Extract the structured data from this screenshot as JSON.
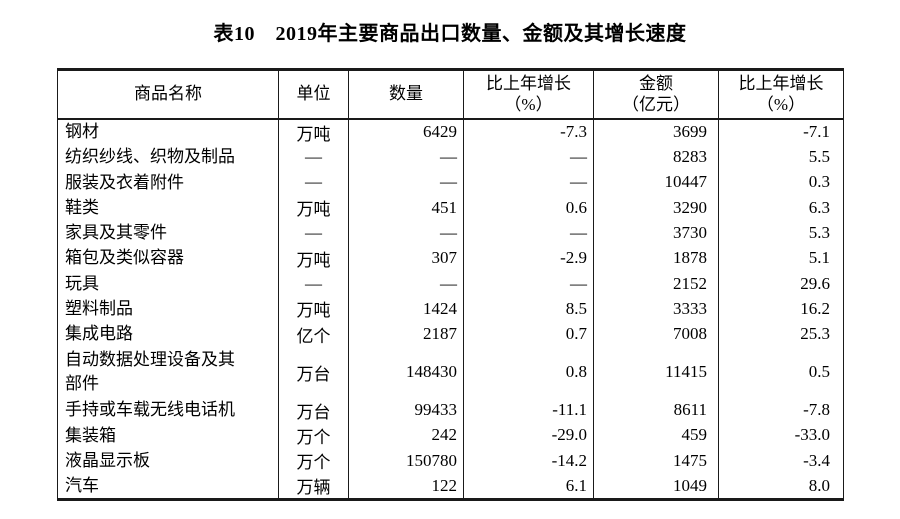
{
  "title": "表10　2019年主要商品出口数量、金额及其增长速度",
  "colors": {
    "text": "#000000",
    "border": "#1a1a1a",
    "background": "#ffffff"
  },
  "table": {
    "columns": [
      {
        "key": "name",
        "lines": [
          "商品名称"
        ]
      },
      {
        "key": "unit",
        "lines": [
          "单位"
        ]
      },
      {
        "key": "quantity",
        "lines": [
          "数量"
        ]
      },
      {
        "key": "quantity_growth",
        "lines": [
          "比上年增长",
          "（%）"
        ]
      },
      {
        "key": "value",
        "lines": [
          "金额",
          "（亿元）"
        ]
      },
      {
        "key": "value_growth",
        "lines": [
          "比上年增长",
          "（%）"
        ]
      }
    ],
    "rows": [
      [
        "钢材",
        "万吨",
        "6429",
        "-7.3",
        "3699",
        "-7.1"
      ],
      [
        "纺织纱线、织物及制品",
        "—",
        "—",
        "—",
        "8283",
        "5.5"
      ],
      [
        "服装及衣着附件",
        "—",
        "—",
        "—",
        "10447",
        "0.3"
      ],
      [
        "鞋类",
        "万吨",
        "451",
        "0.6",
        "3290",
        "6.3"
      ],
      [
        "家具及其零件",
        "—",
        "—",
        "—",
        "3730",
        "5.3"
      ],
      [
        "箱包及类似容器",
        "万吨",
        "307",
        "-2.9",
        "1878",
        "5.1"
      ],
      [
        "玩具",
        "—",
        "—",
        "—",
        "2152",
        "29.6"
      ],
      [
        "塑料制品",
        "万吨",
        "1424",
        "8.5",
        "3333",
        "16.2"
      ],
      [
        "集成电路",
        "亿个",
        "2187",
        "0.7",
        "7008",
        "25.3"
      ],
      [
        "自动数据处理设备及其\n部件",
        "万台",
        "148430",
        "0.8",
        "11415",
        "0.5"
      ],
      [
        "手持或车载无线电话机",
        "万台",
        "99433",
        "-11.1",
        "8611",
        "-7.8"
      ],
      [
        "集装箱",
        "万个",
        "242",
        "-29.0",
        "459",
        "-33.0"
      ],
      [
        "液晶显示板",
        "万个",
        "150780",
        "-14.2",
        "1475",
        "-3.4"
      ],
      [
        "汽车",
        "万辆",
        "122",
        "6.1",
        "1049",
        "8.0"
      ]
    ]
  }
}
